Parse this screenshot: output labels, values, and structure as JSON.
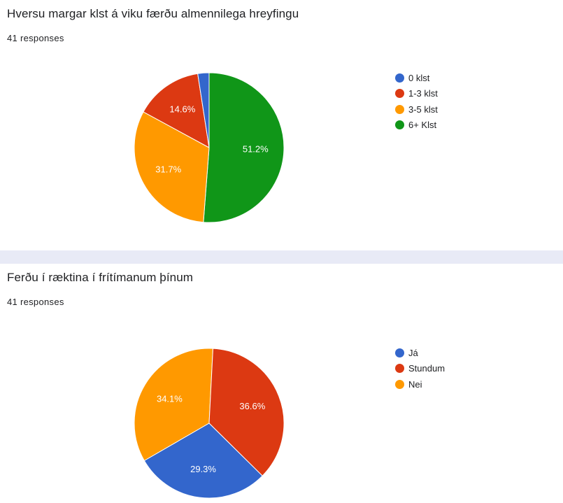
{
  "chart_data": [
    {
      "type": "pie",
      "title": "Hversu margar klst á viku færðu almennilega hreyfingu",
      "subtitle": "41 responses",
      "categories": [
        "0 klst",
        "1-3 klst",
        "3-5 klst",
        "6+ Klst"
      ],
      "values": [
        1,
        6,
        13,
        21
      ],
      "labels": [
        "",
        "14.6%",
        "31.7%",
        "51.2%"
      ],
      "colors": [
        "#3366cc",
        "#dc3912",
        "#ff9900",
        "#109618"
      ],
      "legend": "right"
    },
    {
      "type": "pie",
      "title": "Ferðu í ræktina í frítímanum þínum",
      "subtitle": "41 responses",
      "categories": [
        "Já",
        "Stundum",
        "Nei"
      ],
      "values": [
        12,
        15,
        14
      ],
      "labels": [
        "29.3%",
        "36.6%",
        "34.1%"
      ],
      "colors": [
        "#3366cc",
        "#dc3912",
        "#ff9900"
      ],
      "legend": "right"
    }
  ]
}
